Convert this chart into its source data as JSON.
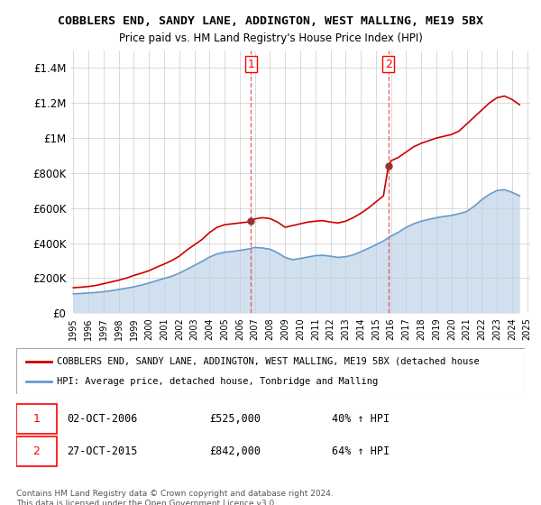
{
  "title": "COBBLERS END, SANDY LANE, ADDINGTON, WEST MALLING, ME19 5BX",
  "subtitle": "Price paid vs. HM Land Registry's House Price Index (HPI)",
  "ylabel": "",
  "ylim": [
    0,
    1500000
  ],
  "yticks": [
    0,
    200000,
    400000,
    600000,
    800000,
    1000000,
    1200000,
    1400000
  ],
  "ytick_labels": [
    "£0",
    "£200K",
    "£400K",
    "£600K",
    "£800K",
    "£1M",
    "£1.2M",
    "£1.4M"
  ],
  "x_start_year": 1995,
  "x_end_year": 2025,
  "red_line_color": "#cc0000",
  "blue_line_color": "#6699cc",
  "marker1_date": 2006.75,
  "marker1_value": 525000,
  "marker1_label": "1",
  "marker1_date_str": "02-OCT-2006",
  "marker1_price_str": "£525,000",
  "marker1_hpi_str": "40% ↑ HPI",
  "marker2_date": 2015.83,
  "marker2_value": 842000,
  "marker2_label": "2",
  "marker2_date_str": "27-OCT-2015",
  "marker2_price_str": "£842,000",
  "marker2_hpi_str": "64% ↑ HPI",
  "vline_color": "#dd4444",
  "legend_label_red": "COBBLERS END, SANDY LANE, ADDINGTON, WEST MALLING, ME19 5BX (detached house",
  "legend_label_blue": "HPI: Average price, detached house, Tonbridge and Malling",
  "footer": "Contains HM Land Registry data © Crown copyright and database right 2024.\nThis data is licensed under the Open Government Licence v3.0.",
  "red_line_data": {
    "years": [
      1995.0,
      1995.5,
      1996.0,
      1996.5,
      1997.0,
      1997.5,
      1998.0,
      1998.5,
      1999.0,
      1999.5,
      2000.0,
      2000.5,
      2001.0,
      2001.5,
      2002.0,
      2002.5,
      2003.0,
      2003.5,
      2004.0,
      2004.5,
      2005.0,
      2005.5,
      2006.0,
      2006.5,
      2006.75,
      2007.0,
      2007.5,
      2008.0,
      2008.5,
      2009.0,
      2009.5,
      2010.0,
      2010.5,
      2011.0,
      2011.5,
      2012.0,
      2012.5,
      2013.0,
      2013.5,
      2014.0,
      2014.5,
      2015.0,
      2015.5,
      2015.83,
      2016.0,
      2016.5,
      2017.0,
      2017.5,
      2018.0,
      2018.5,
      2019.0,
      2019.5,
      2020.0,
      2020.5,
      2021.0,
      2021.5,
      2022.0,
      2022.5,
      2023.0,
      2023.5,
      2024.0,
      2024.5
    ],
    "values": [
      145000,
      148000,
      152000,
      158000,
      168000,
      178000,
      188000,
      200000,
      215000,
      228000,
      242000,
      262000,
      280000,
      300000,
      325000,
      360000,
      390000,
      420000,
      460000,
      490000,
      505000,
      510000,
      515000,
      520000,
      525000,
      538000,
      545000,
      540000,
      520000,
      490000,
      500000,
      510000,
      520000,
      525000,
      528000,
      520000,
      515000,
      525000,
      545000,
      570000,
      600000,
      635000,
      670000,
      842000,
      870000,
      890000,
      920000,
      950000,
      970000,
      985000,
      1000000,
      1010000,
      1020000,
      1040000,
      1080000,
      1120000,
      1160000,
      1200000,
      1230000,
      1240000,
      1220000,
      1190000
    ]
  },
  "blue_line_data": {
    "years": [
      1995.0,
      1995.5,
      1996.0,
      1996.5,
      1997.0,
      1997.5,
      1998.0,
      1998.5,
      1999.0,
      1999.5,
      2000.0,
      2000.5,
      2001.0,
      2001.5,
      2002.0,
      2002.5,
      2003.0,
      2003.5,
      2004.0,
      2004.5,
      2005.0,
      2005.5,
      2006.0,
      2006.5,
      2007.0,
      2007.5,
      2008.0,
      2008.5,
      2009.0,
      2009.5,
      2010.0,
      2010.5,
      2011.0,
      2011.5,
      2012.0,
      2012.5,
      2013.0,
      2013.5,
      2014.0,
      2014.5,
      2015.0,
      2015.5,
      2016.0,
      2016.5,
      2017.0,
      2017.5,
      2018.0,
      2018.5,
      2019.0,
      2019.5,
      2020.0,
      2020.5,
      2021.0,
      2021.5,
      2022.0,
      2022.5,
      2023.0,
      2023.5,
      2024.0,
      2024.5
    ],
    "values": [
      110000,
      112000,
      115000,
      118000,
      122000,
      128000,
      135000,
      142000,
      150000,
      160000,
      172000,
      185000,
      198000,
      210000,
      228000,
      250000,
      272000,
      295000,
      320000,
      338000,
      348000,
      352000,
      358000,
      365000,
      375000,
      372000,
      365000,
      345000,
      318000,
      305000,
      312000,
      320000,
      328000,
      330000,
      325000,
      318000,
      322000,
      332000,
      350000,
      370000,
      390000,
      412000,
      440000,
      462000,
      490000,
      510000,
      525000,
      535000,
      545000,
      552000,
      558000,
      568000,
      580000,
      610000,
      648000,
      678000,
      700000,
      705000,
      690000,
      670000
    ]
  }
}
